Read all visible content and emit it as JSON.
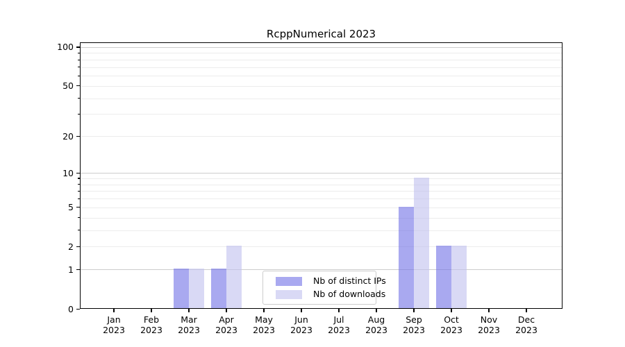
{
  "title": "RcppNumerical 2023",
  "colors": {
    "bar_distinct_ips": "#7070e6",
    "bar_downloads": "#c0c0ee",
    "bar_opacity": 0.6,
    "grid_major": "#cccccc",
    "grid_minor": "#ececec",
    "axis": "#000000",
    "legend_border": "#cccccc",
    "background": "#ffffff"
  },
  "legend": {
    "items": [
      {
        "label": "Nb of distinct IPs",
        "color_key": "bar_distinct_ips"
      },
      {
        "label": "Nb of downloads",
        "color_key": "bar_downloads"
      }
    ]
  },
  "chart_data": {
    "type": "bar",
    "title": "RcppNumerical 2023",
    "x_tick_months": [
      "Jan",
      "Feb",
      "Mar",
      "Apr",
      "May",
      "Jun",
      "Jul",
      "Aug",
      "Sep",
      "Oct",
      "Nov",
      "Dec"
    ],
    "x_tick_year": "2023",
    "series": [
      {
        "name": "Nb of distinct IPs",
        "values": [
          0,
          0,
          1,
          1,
          0,
          0,
          0,
          0,
          5,
          2,
          0,
          0
        ]
      },
      {
        "name": "Nb of downloads",
        "values": [
          0,
          0,
          1,
          2,
          0,
          0,
          0,
          0,
          9,
          2,
          0,
          0
        ]
      }
    ],
    "y_scale": "log1p",
    "ylim": [
      0,
      109
    ],
    "y_tick_values": [
      0,
      1,
      2,
      5,
      10,
      20,
      50,
      100
    ],
    "y_tick_labels": [
      "0",
      "1",
      "2",
      "5",
      "10",
      "20",
      "50",
      "100"
    ],
    "y_major_grid": [
      1,
      10,
      100
    ],
    "y_minor_grid": [
      2,
      3,
      4,
      5,
      6,
      7,
      8,
      9,
      20,
      30,
      40,
      50,
      60,
      70,
      80,
      90
    ],
    "grid": "both",
    "legend_position": "lower center inside",
    "xlabel": "",
    "ylabel": ""
  }
}
